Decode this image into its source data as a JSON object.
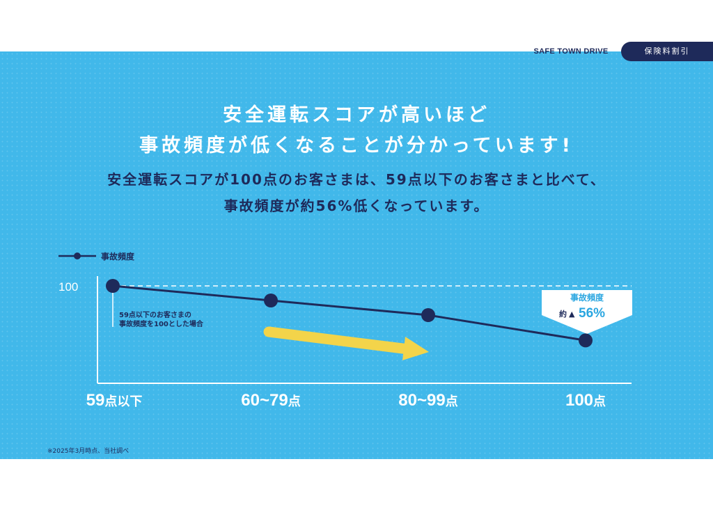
{
  "header": {
    "brand": "SAFE TOWN DRIVE",
    "tag": "保険料割引"
  },
  "headline": {
    "line1": "安全運転スコアが高いほど",
    "line2": "事故頻度が低くなることが分かっています!"
  },
  "subhead": {
    "line1": "安全運転スコアが100点のお客さまは、59点以下のお客さまと比べて、",
    "line2": "事故頻度が約56%低くなっています。"
  },
  "colors": {
    "background": "#41b8ea",
    "navy": "#1e2a5a",
    "arrow": "#f3d44a",
    "white": "#ffffff"
  },
  "chart_data": {
    "type": "line",
    "categories": [
      "59点以下",
      "60~79点",
      "80~99点",
      "100点"
    ],
    "series": [
      {
        "name": "事故頻度",
        "values": [
          100,
          85,
          70,
          44
        ]
      }
    ],
    "ylim": [
      0,
      100
    ],
    "y_ticks": [
      "100"
    ],
    "legend": {
      "label": "事故頻度",
      "position": "top-left"
    },
    "annotations": {
      "baseline_note_line1": "59点以下のお客さまの",
      "baseline_note_line2": "事故頻度を100とした場合",
      "callout_title": "事故頻度",
      "callout_prefix": "約",
      "callout_arrow": "▲",
      "callout_value": "56%"
    }
  },
  "footnote": "※2025年3月時点、当社調べ"
}
